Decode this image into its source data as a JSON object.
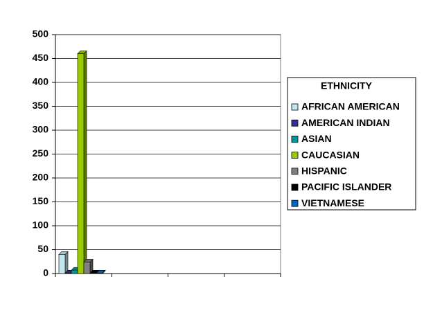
{
  "chart_data": {
    "type": "bar3d",
    "categories": [
      null,
      null,
      null,
      null
    ],
    "series": [
      {
        "name": "AFRICAN AMERICAN",
        "color": "#c3e6ee",
        "values": [
          40,
          null,
          null,
          null
        ]
      },
      {
        "name": "AMERICAN INDIAN",
        "color": "#333399",
        "values": [
          1,
          null,
          null,
          null
        ]
      },
      {
        "name": "ASIAN",
        "color": "#009999",
        "values": [
          7,
          null,
          null,
          null
        ]
      },
      {
        "name": "CAUCASIAN",
        "color": "#99cc00",
        "values": [
          460,
          null,
          null,
          null
        ]
      },
      {
        "name": "HISPANIC",
        "color": "#808080",
        "values": [
          24,
          null,
          null,
          null
        ]
      },
      {
        "name": "PACIFIC ISLANDER",
        "color": "#000000",
        "values": [
          1,
          null,
          null,
          null
        ]
      },
      {
        "name": "VIETNAMESE",
        "color": "#0066cc",
        "values": [
          1,
          null,
          null,
          null
        ]
      }
    ],
    "ylim": [
      0,
      500
    ],
    "yticks": [
      0,
      50,
      100,
      150,
      200,
      250,
      300,
      350,
      400,
      450,
      500
    ],
    "grid": true,
    "legend_title": "ETHNICITY",
    "legend": "right"
  }
}
